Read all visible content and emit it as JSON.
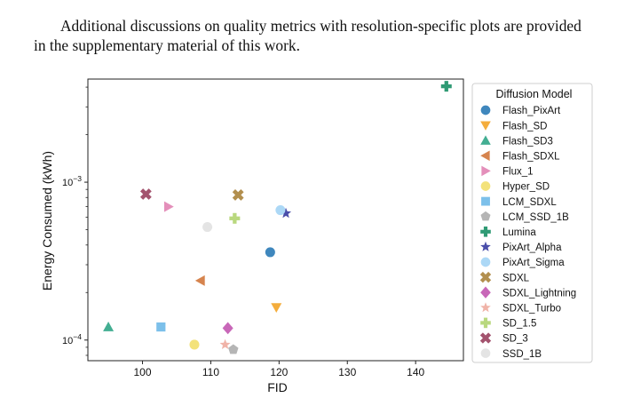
{
  "caption": {
    "text": "Additional discussions on quality metrics with resolution-specific plots are provided in the supplementary material of this work."
  },
  "chart_data": {
    "type": "scatter",
    "xlabel": "FID",
    "ylabel": "Energy Consumed (kWh)",
    "yscale": "log",
    "xlim": [
      92,
      147
    ],
    "ylim": [
      7.4e-05,
      0.0045
    ],
    "xticks": [
      100,
      110,
      120,
      130,
      140
    ],
    "yticks": [
      {
        "value": 0.0001,
        "base": "10",
        "exp": "−4"
      },
      {
        "value": 0.001,
        "base": "10",
        "exp": "−3"
      }
    ],
    "legend_title": "Diffusion Model",
    "legend_position": "outside-right",
    "series": [
      {
        "name": "Flash_PixArt",
        "marker": "circle",
        "color": "#3f87bd",
        "x": 118.7,
        "y": 0.00036
      },
      {
        "name": "Flash_SD",
        "marker": "triangle-down",
        "color": "#f4ad3c",
        "x": 119.6,
        "y": 0.000161
      },
      {
        "name": "Flash_SD3",
        "marker": "triangle-up",
        "color": "#43ae92",
        "x": 95.0,
        "y": 0.000121
      },
      {
        "name": "Flash_SDXL",
        "marker": "triangle-left",
        "color": "#d6844e",
        "x": 108.5,
        "y": 0.000238
      },
      {
        "name": "Flux_1",
        "marker": "triangle-right",
        "color": "#e48fba",
        "x": 103.8,
        "y": 0.0007
      },
      {
        "name": "Hyper_SD",
        "marker": "circle",
        "color": "#f3e27a",
        "x": 107.6,
        "y": 9.35e-05
      },
      {
        "name": "LCM_SDXL",
        "marker": "square",
        "color": "#7cc0ea",
        "x": 102.7,
        "y": 0.000121
      },
      {
        "name": "LCM_SSD_1B",
        "marker": "pentagon",
        "color": "#b5b5b5",
        "x": 113.3,
        "y": 8.7e-05
      },
      {
        "name": "Lumina",
        "marker": "plus",
        "color": "#2f9a74",
        "x": 144.5,
        "y": 0.00405
      },
      {
        "name": "PixArt_Alpha",
        "marker": "star",
        "color": "#4a4eaa",
        "x": 121.0,
        "y": 0.000635
      },
      {
        "name": "PixArt_Sigma",
        "marker": "circle",
        "color": "#acd8f6",
        "x": 120.2,
        "y": 0.000665
      },
      {
        "name": "SDXL",
        "marker": "x",
        "color": "#b28f4e",
        "x": 114.0,
        "y": 0.00083
      },
      {
        "name": "SDXL_Lightning",
        "marker": "diamond",
        "color": "#c867b8",
        "x": 112.5,
        "y": 0.000119
      },
      {
        "name": "SDXL_Turbo",
        "marker": "star",
        "color": "#f0b3a8",
        "x": 112.1,
        "y": 9.35e-05
      },
      {
        "name": "SD_1.5",
        "marker": "plus",
        "color": "#b9d87e",
        "x": 113.5,
        "y": 0.00059
      },
      {
        "name": "SD_3",
        "marker": "x",
        "color": "#a3536e",
        "x": 100.5,
        "y": 0.00084
      },
      {
        "name": "SSD_1B",
        "marker": "circle",
        "color": "#e4e4e4",
        "x": 109.5,
        "y": 0.00052
      }
    ]
  }
}
